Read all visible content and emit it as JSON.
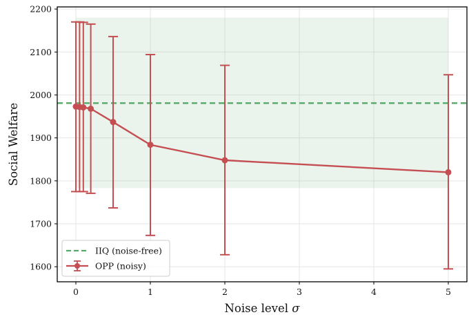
{
  "chart_data": {
    "type": "line",
    "title": "",
    "xlabel": "Noise level",
    "xlabel_symbol": "σ",
    "ylabel": "Social Welfare",
    "xlim": [
      -0.25,
      5.25
    ],
    "ylim": [
      1565,
      2205
    ],
    "xticks": [
      0,
      1,
      2,
      3,
      4,
      5
    ],
    "yticks": [
      1600,
      1700,
      1800,
      1900,
      2000,
      2100,
      2200
    ],
    "grid": true,
    "legend_position": "lower-left",
    "series": [
      {
        "name": "OPP (noisy)",
        "color": "#c44e52",
        "marker": "circle",
        "x": [
          0,
          0.05,
          0.1,
          0.2,
          0.5,
          1,
          2,
          5
        ],
        "y": [
          1973,
          1972,
          1971,
          1968,
          1937,
          1884,
          1848,
          1820
        ],
        "yerr_low": [
          1775,
          1775,
          1775,
          1771,
          1737,
          1673,
          1628,
          1595
        ],
        "yerr_high": [
          2170,
          2170,
          2169,
          2165,
          2136,
          2094,
          2069,
          2047
        ]
      }
    ],
    "reference": {
      "name": "IIQ (noise-free)",
      "color": "#55a868",
      "value": 1981,
      "band_low": 1783,
      "band_high": 2180,
      "band_x": [
        0,
        5
      ]
    }
  }
}
